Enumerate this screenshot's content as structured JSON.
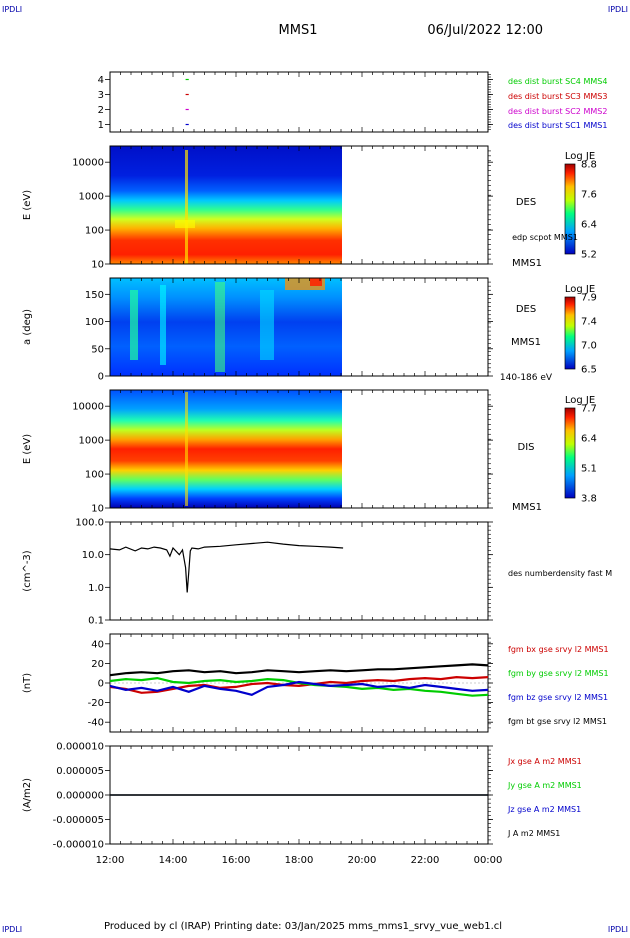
{
  "corners": {
    "top_left": "IPDLI",
    "top_right": "IPDLI",
    "bottom_left": "IPDLI",
    "bottom_right": "IPDLI"
  },
  "header": {
    "spacecraft": "MMS1",
    "datetime": "06/Jul/2022 12:00"
  },
  "footer": "Produced by cl (IRAP)   Printing date: 03/Jan/2025   mms_mms1_srvy_vue_web1.cl",
  "colors": {
    "blue": "#0000cc",
    "magenta": "#cc00cc",
    "red": "#cc0000",
    "green": "#00cc00",
    "black": "#000000",
    "corner": "#0000aa"
  },
  "chart_data": [
    {
      "id": "burst",
      "type": "scatter",
      "ylabel": "",
      "ylim": [
        0.5,
        4.5
      ],
      "yticks": [
        "1",
        "2",
        "3",
        "4"
      ],
      "series": [
        {
          "name": "des dist burst SC1 MMS1",
          "y": 1,
          "x_hours": [
            14.4,
            14.5
          ],
          "color": "blue"
        },
        {
          "name": "des dist burst SC2 MMS2",
          "y": 2,
          "x_hours": [
            14.4,
            14.5
          ],
          "color": "magenta"
        },
        {
          "name": "des dist burst SC3 MMS3",
          "y": 3,
          "x_hours": [
            14.4,
            14.5
          ],
          "color": "red"
        },
        {
          "name": "des dist burst SC4 MMS4",
          "y": 4,
          "x_hours": [
            14.4,
            14.5
          ],
          "color": "green"
        }
      ]
    },
    {
      "id": "des_energy",
      "type": "heatmap",
      "ylabel": "E (eV)",
      "yscale": "log",
      "ylim": [
        10,
        30000
      ],
      "yticks": [
        "10",
        "100",
        "1000",
        "10000"
      ],
      "data_end_hour": 19.4,
      "band_labels": [
        "DES",
        "edp scpot MMS1",
        "MMS1"
      ],
      "colorbar": {
        "title": "Log JE",
        "ticks": [
          "8.8",
          "7.6",
          "6.4",
          "5.2"
        ]
      }
    },
    {
      "id": "des_pitch",
      "type": "heatmap",
      "ylabel": "a (deg)",
      "ylim": [
        0,
        180
      ],
      "yticks": [
        "0",
        "50",
        "100",
        "150"
      ],
      "data_end_hour": 19.4,
      "band_labels": [
        "DES",
        "MMS1",
        "140-186 eV"
      ],
      "colorbar": {
        "title": "Log JE",
        "ticks": [
          "7.9",
          "7.4",
          "7.0",
          "6.5"
        ]
      }
    },
    {
      "id": "dis_energy",
      "type": "heatmap",
      "ylabel": "E (eV)",
      "yscale": "log",
      "ylim": [
        10,
        30000
      ],
      "yticks": [
        "10",
        "100",
        "1000",
        "10000"
      ],
      "data_end_hour": 19.4,
      "band_labels": [
        "DIS",
        "MMS1"
      ],
      "colorbar": {
        "title": "Log JE",
        "ticks": [
          "7.7",
          "6.4",
          "5.1",
          "3.8"
        ]
      }
    },
    {
      "id": "density",
      "type": "line",
      "ylabel": "(cm^-3)",
      "yscale": "log",
      "ylim": [
        0.1,
        100
      ],
      "yticks": [
        "0.1",
        "1.0",
        "10.0",
        "100.0"
      ],
      "series": [
        {
          "name": "des numberdensity fast M",
          "color": "black",
          "x": [
            12.0,
            12.3,
            12.5,
            12.8,
            13.0,
            13.2,
            13.4,
            13.6,
            13.8,
            13.9,
            14.0,
            14.2,
            14.3,
            14.4,
            14.45,
            14.5,
            14.55,
            14.6,
            14.8,
            15.0,
            15.5,
            16.0,
            16.5,
            17.0,
            17.5,
            18.0,
            18.5,
            19.0,
            19.4
          ],
          "y": [
            15,
            14,
            17,
            13,
            16,
            15,
            17,
            16,
            14,
            9,
            16,
            10,
            14,
            4,
            0.7,
            3,
            13,
            16,
            15,
            17,
            18,
            20,
            22,
            24,
            21,
            19,
            18,
            17,
            16
          ]
        }
      ]
    },
    {
      "id": "fgm",
      "type": "line",
      "ylabel": "(nT)",
      "ylim": [
        -50,
        50
      ],
      "yticks": [
        "-40",
        "-20",
        "0",
        "20",
        "40"
      ],
      "series": [
        {
          "name": "fgm bx gse srvy l2 MMS1",
          "color": "red",
          "x": [
            12.0,
            12.5,
            13.0,
            13.5,
            14.0,
            14.5,
            15.0,
            15.5,
            16.0,
            16.5,
            17.0,
            17.5,
            18.0,
            18.5,
            19.0,
            19.5,
            20.0,
            20.5,
            21.0,
            21.5,
            22.0,
            22.5,
            23.0,
            23.5,
            24.0
          ],
          "y": [
            -4,
            -6,
            -10,
            -9,
            -6,
            -3,
            -2,
            -5,
            -4,
            -1,
            0,
            -2,
            -3,
            -1,
            1,
            0,
            2,
            3,
            2,
            4,
            5,
            4,
            6,
            5,
            6
          ]
        },
        {
          "name": "fgm by gse srvy l2 MMS1",
          "color": "green",
          "x": [
            12.0,
            12.5,
            13.0,
            13.5,
            14.0,
            14.5,
            15.0,
            15.5,
            16.0,
            16.5,
            17.0,
            17.5,
            18.0,
            18.5,
            19.0,
            19.5,
            20.0,
            20.5,
            21.0,
            21.5,
            22.0,
            22.5,
            23.0,
            23.5,
            24.0
          ],
          "y": [
            2,
            4,
            3,
            5,
            1,
            0,
            2,
            3,
            1,
            2,
            4,
            3,
            0,
            -2,
            -3,
            -4,
            -6,
            -5,
            -7,
            -6,
            -8,
            -9,
            -11,
            -13,
            -12
          ]
        },
        {
          "name": "fgm bz gse srvy l2 MMS1",
          "color": "blue",
          "x": [
            12.0,
            12.5,
            13.0,
            13.5,
            14.0,
            14.5,
            15.0,
            15.5,
            16.0,
            16.5,
            17.0,
            17.5,
            18.0,
            18.5,
            19.0,
            19.5,
            20.0,
            20.5,
            21.0,
            21.5,
            22.0,
            22.5,
            23.0,
            23.5,
            24.0
          ],
          "y": [
            -3,
            -7,
            -5,
            -8,
            -4,
            -9,
            -3,
            -6,
            -8,
            -12,
            -4,
            -2,
            1,
            -1,
            -3,
            -2,
            -1,
            -4,
            -3,
            -5,
            -2,
            -4,
            -6,
            -8,
            -7
          ]
        },
        {
          "name": "fgm bt gse srvy l2 MMS1",
          "color": "black",
          "x": [
            12.0,
            12.5,
            13.0,
            13.5,
            14.0,
            14.5,
            15.0,
            15.5,
            16.0,
            16.5,
            17.0,
            17.5,
            18.0,
            18.5,
            19.0,
            19.5,
            20.0,
            20.5,
            21.0,
            21.5,
            22.0,
            22.5,
            23.0,
            23.5,
            24.0
          ],
          "y": [
            8,
            10,
            11,
            10,
            12,
            13,
            11,
            12,
            10,
            11,
            13,
            12,
            11,
            12,
            13,
            12,
            13,
            14,
            14,
            15,
            16,
            17,
            18,
            19,
            18
          ]
        }
      ]
    },
    {
      "id": "current",
      "type": "line",
      "ylabel": "(A/m2)",
      "ylim": [
        -1e-05,
        1e-05
      ],
      "yticks": [
        "-0.000010",
        "-0.000005",
        "0.000000",
        "0.000005",
        "0.000010"
      ],
      "xticks": [
        "12:00",
        "14:00",
        "16:00",
        "18:00",
        "20:00",
        "22:00",
        "00:00"
      ],
      "series": [
        {
          "name": "Jx gse A m2 MMS1",
          "color": "red",
          "x": [
            12.0,
            24.0
          ],
          "y": [
            0,
            0
          ]
        },
        {
          "name": "Jy gse A m2 MMS1",
          "color": "green",
          "x": [
            12.0,
            24.0
          ],
          "y": [
            0,
            0
          ]
        },
        {
          "name": "Jz gse A m2 MMS1",
          "color": "blue",
          "x": [
            12.0,
            24.0
          ],
          "y": [
            0,
            0
          ]
        },
        {
          "name": "J A m2 MMS1",
          "color": "black",
          "x": [
            12.0,
            24.0
          ],
          "y": [
            0,
            0
          ]
        }
      ]
    }
  ]
}
